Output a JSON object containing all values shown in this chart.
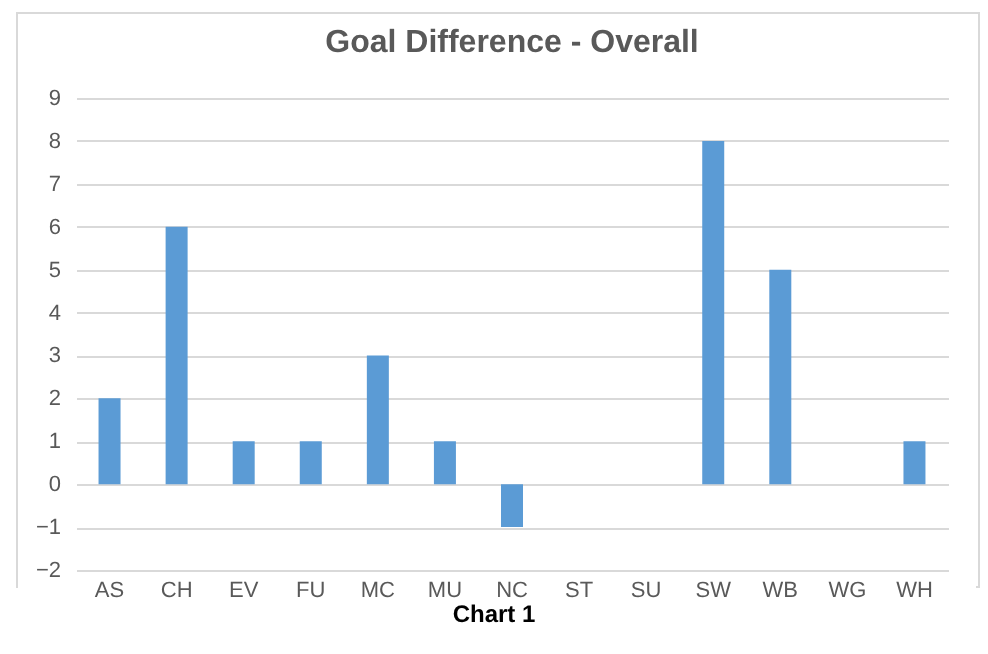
{
  "chart_data": {
    "type": "bar",
    "title": "Goal Difference - Overall",
    "categories": [
      "AS",
      "CH",
      "EV",
      "FU",
      "MC",
      "MU",
      "NC",
      "ST",
      "SU",
      "SW",
      "WB",
      "WG",
      "WH"
    ],
    "values": [
      2,
      6,
      1,
      1,
      3,
      1,
      -1,
      0,
      0,
      8,
      5,
      0,
      1
    ],
    "color": "#5b9bd5",
    "ylim": [
      -2,
      9
    ],
    "yticks": [
      -2,
      -1,
      0,
      1,
      2,
      3,
      4,
      5,
      6,
      7,
      8,
      9
    ],
    "grid": "y",
    "annotations": [
      "Chart 1"
    ]
  }
}
